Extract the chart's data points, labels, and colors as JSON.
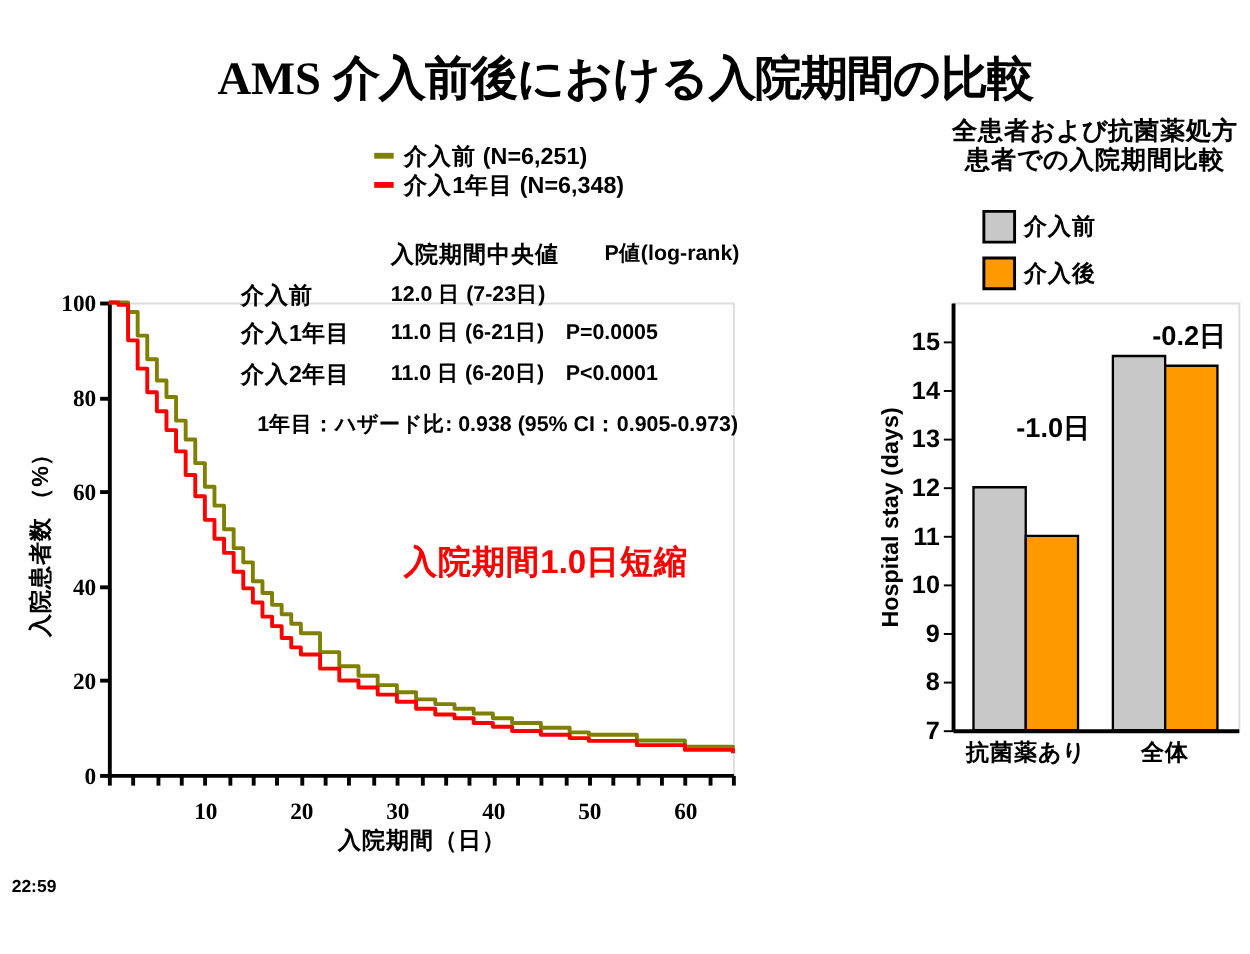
{
  "chart_data": [
    {
      "type": "step",
      "title": "AMS 介入前後における入院期間の比較",
      "xlabel": "入院期間（日）",
      "ylabel": "入院患者数 （%）",
      "xlim": [
        0,
        65
      ],
      "ylim": [
        0,
        100
      ],
      "xticks": [
        {
          "value": 0,
          "label": null
        },
        {
          "value": 2.5,
          "label": null
        },
        {
          "value": 5,
          "label": null
        },
        {
          "value": 7.5,
          "label": null
        },
        10,
        {
          "value": 12.5,
          "label": null
        },
        {
          "value": 15,
          "label": null
        },
        {
          "value": 17.5,
          "label": null
        },
        20,
        {
          "value": 22.5,
          "label": null
        },
        {
          "value": 25,
          "label": null
        },
        {
          "value": 27.5,
          "label": null
        },
        30,
        {
          "value": 32.5,
          "label": null
        },
        {
          "value": 35,
          "label": null
        },
        {
          "value": 37.5,
          "label": null
        },
        40,
        {
          "value": 42.5,
          "label": null
        },
        {
          "value": 45,
          "label": null
        },
        {
          "value": 47.5,
          "label": null
        },
        50,
        {
          "value": 52.5,
          "label": null
        },
        {
          "value": 55,
          "label": null
        },
        {
          "value": 57.5,
          "label": null
        },
        60,
        {
          "value": 62.5,
          "label": null
        },
        {
          "value": 65,
          "label": null
        }
      ],
      "yticks": [
        0,
        20,
        40,
        60,
        80,
        100
      ],
      "grid": false,
      "legend": "top",
      "line_style": "solid",
      "x": [
        0,
        1,
        2,
        3,
        4,
        5,
        6,
        7,
        8,
        9,
        10,
        11,
        12,
        13,
        14,
        15,
        16,
        17,
        18,
        19,
        20,
        22,
        24,
        26,
        28,
        30,
        32,
        34,
        36,
        38,
        40,
        42,
        45,
        48,
        50,
        55,
        60,
        65
      ],
      "series": [
        {
          "name": "介入前 (N=6,251)",
          "color": "#808000",
          "values": [
            100,
            100,
            98,
            93,
            88,
            83.5,
            80,
            75,
            71,
            66,
            61,
            57,
            52,
            48,
            45,
            41,
            38.5,
            36,
            34,
            32,
            30,
            26,
            23,
            21,
            19,
            17.5,
            16,
            15,
            14,
            13,
            12,
            11,
            10,
            9,
            8.5,
            7.3,
            6,
            5
          ]
        },
        {
          "name": "介入1年目 (N=6,348)",
          "color": "#ff0000",
          "values": [
            100,
            99.5,
            92,
            86,
            81,
            77,
            73,
            68.5,
            63.5,
            59,
            54,
            50,
            47,
            43,
            39.5,
            36.5,
            33.5,
            31.5,
            29,
            27,
            25.5,
            22.5,
            20,
            18.5,
            17,
            15.5,
            14,
            12.8,
            12,
            11,
            10.2,
            9.3,
            8.5,
            7.8,
            7.2,
            6.3,
            5.3,
            4.6
          ]
        }
      ],
      "annotations": [
        "入院期間中央値",
        "P値(log-rank)",
        "介入前",
        "12.0 日 (7-23日)",
        "介入1年目",
        "11.0 日 (6-21日)",
        "P=0.0005",
        "介入2年目",
        "11.0 日 (6-20日)",
        "P<0.0001",
        "1年目：ハザード比: 0.938 (95% CI：0.905-0.973)",
        "入院期間1.0日短縮",
        "22:59"
      ]
    },
    {
      "type": "bar",
      "title": "全患者および抗菌薬処方患者での入院期間比較",
      "ylabel": "Hospital stay (days)",
      "categories": [
        "抗菌薬あり",
        "全体"
      ],
      "ylim": [
        7,
        15.8
      ],
      "yticks": [
        7,
        8,
        9,
        10,
        11,
        12,
        13,
        14,
        15
      ],
      "grid": false,
      "legend": "top",
      "series": [
        {
          "name": "介入前",
          "color": "#c8c8c8",
          "values": [
            12.0,
            14.7
          ]
        },
        {
          "name": "介入後",
          "color": "#ff9900",
          "values": [
            11.0,
            14.5
          ]
        }
      ],
      "annotations": [
        "-1.0日",
        "-0.2日"
      ]
    }
  ]
}
